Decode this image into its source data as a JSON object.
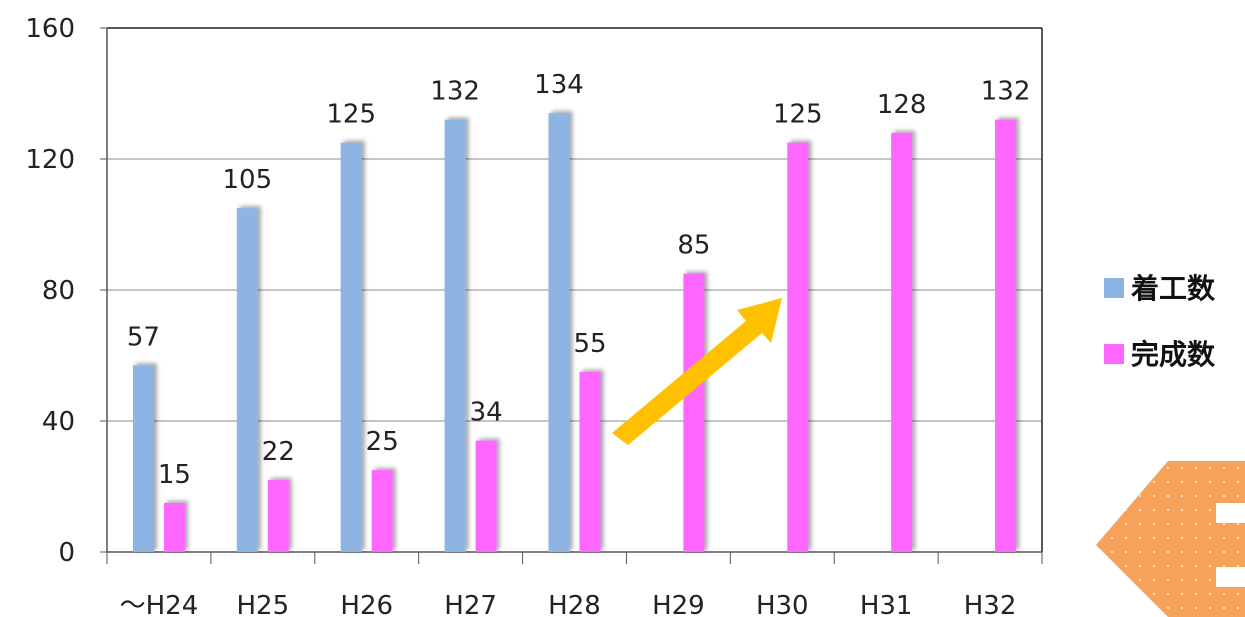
{
  "chart_data": {
    "type": "bar",
    "categories": [
      "〜H24",
      "H25",
      "H26",
      "H27",
      "H28",
      "H29",
      "H30",
      "H31",
      "H32"
    ],
    "series": [
      {
        "name": "着工数",
        "values": [
          57,
          105,
          125,
          132,
          134,
          null,
          null,
          null,
          null
        ],
        "color": "#8EB4E3"
      },
      {
        "name": "完成数",
        "values": [
          15,
          22,
          25,
          34,
          55,
          85,
          125,
          128,
          132
        ],
        "color": "#FF66FF"
      }
    ],
    "ylim": [
      0,
      160
    ],
    "yticks": [
      0,
      40,
      80,
      120,
      160
    ],
    "grid": true,
    "legend_position": "right",
    "annotation_arrow_color": "#FFC000",
    "decoration_color": "#F79646"
  }
}
